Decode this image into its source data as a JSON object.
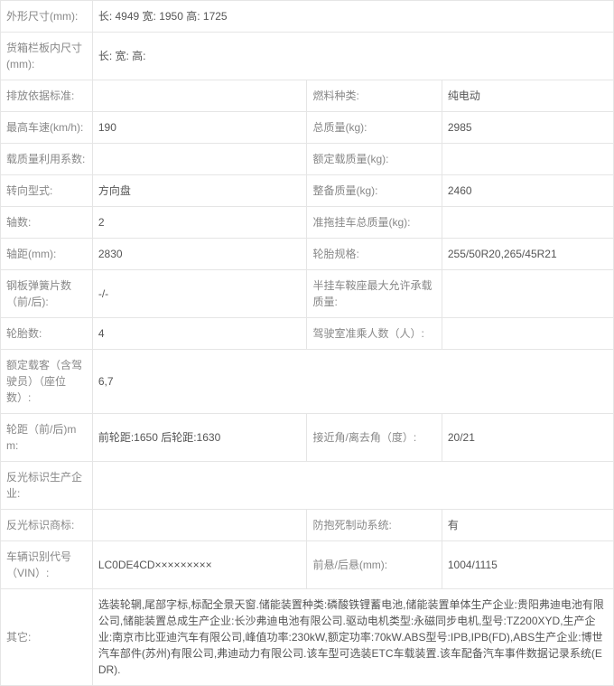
{
  "rows": [
    {
      "l1": "外形尺寸(mm):",
      "v1": "长: 4949 宽: 1950 高: 1725",
      "span": true
    },
    {
      "l1": "货箱栏板内尺寸(mm):",
      "v1": "长:  宽:  高:",
      "span": true
    },
    {
      "l1": "排放依据标准:",
      "v1": "",
      "l2": "燃料种类:",
      "v2": "纯电动"
    },
    {
      "l1": "最高车速(km/h):",
      "v1": "190",
      "l2": "总质量(kg):",
      "v2": "2985"
    },
    {
      "l1": "载质量利用系数:",
      "v1": "",
      "l2": "额定载质量(kg):",
      "v2": ""
    },
    {
      "l1": "转向型式:",
      "v1": "方向盘",
      "l2": "整备质量(kg):",
      "v2": "2460"
    },
    {
      "l1": "轴数:",
      "v1": "2",
      "l2": "准拖挂车总质量(kg):",
      "v2": ""
    },
    {
      "l1": "轴距(mm):",
      "v1": "2830",
      "l2": "轮胎规格:",
      "v2": "255/50R20,265/45R21"
    },
    {
      "l1": "钢板弹簧片数（前/后):",
      "v1": "-/-",
      "l2": "半挂车鞍座最大允许承载质量:",
      "v2": ""
    },
    {
      "l1": "轮胎数:",
      "v1": "4",
      "l2": "驾驶室准乘人数（人）:",
      "v2": ""
    },
    {
      "l1": "额定载客（含驾驶员）（座位数）:",
      "v1": "6,7",
      "span": true
    },
    {
      "l1": "轮距（前/后)mm:",
      "v1": "前轮距:1650 后轮距:1630",
      "l2": "接近角/离去角（度）:",
      "v2": "20/21"
    },
    {
      "l1": "反光标识生产企业:",
      "v1": "",
      "span": true
    },
    {
      "l1": "反光标识商标:",
      "v1": "",
      "l2": "防抱死制动系统:",
      "v2": "有"
    },
    {
      "l1": "车辆识别代号（VIN）:",
      "v1": "LC0DE4CD×××××××××",
      "l2": "前悬/后悬(mm):",
      "v2": "1004/1115"
    },
    {
      "l1": "其它:",
      "v1": "选装轮辋,尾部字标,标配全景天窗.储能装置种类:磷酸铁锂蓄电池,储能装置单体生产企业:贵阳弗迪电池有限公司,储能装置总成生产企业:长沙弗迪电池有限公司.驱动电机类型:永磁同步电机,型号:TZ200XYD,生产企业:南京市比亚迪汽车有限公司,峰值功率:230kW,额定功率:70kW.ABS型号:IPB,IPB(FD),ABS生产企业:博世汽车部件(苏州)有限公司,弗迪动力有限公司.该车型可选装ETC车载装置.该车配备汽车事件数据记录系统(EDR).",
      "span": true
    }
  ]
}
